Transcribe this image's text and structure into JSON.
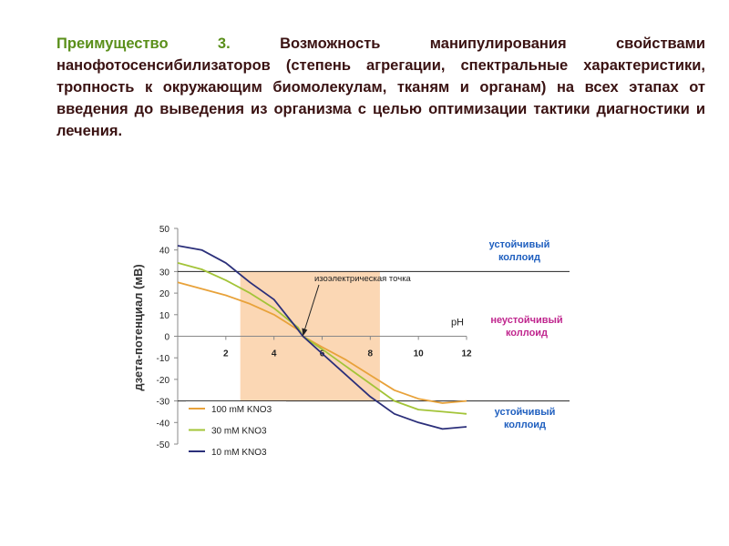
{
  "slide": {
    "heading_lead": "Преимущество 3.",
    "heading_body": "Возможность манипулирования свойствами нанофотосенсибилизаторов (степень агрегации, спектральные характеристики, тропность к окружающим биомолекулам, тканям и органам) на всех этапах от введения до выведения из организма с целью оптимизации тактики диагностики и лечения.",
    "colors": {
      "lead": "#5a8f1a",
      "body": "#3a1212"
    }
  },
  "chart_data": {
    "type": "line",
    "ylabel": "дзета-потенциал (мВ)",
    "xlabel": "pH",
    "xlim": [
      0,
      12
    ],
    "ylim": [
      -50,
      50
    ],
    "x_ticks": [
      2,
      4,
      6,
      8,
      10,
      12
    ],
    "y_ticks": [
      50,
      40,
      30,
      20,
      10,
      0,
      -10,
      -20,
      -30,
      -40,
      -50
    ],
    "iep_region": {
      "x_from": 2.6,
      "x_to": 8.4,
      "color": "#fbd7b4"
    },
    "threshold_lines": [
      30,
      -30
    ],
    "annotation": {
      "text": "изоэлектрическая точка",
      "x": 5.2,
      "y": 0
    },
    "zone_labels": {
      "stable_top": "устойчивый коллоид",
      "unstable": "неустойчивый коллоид",
      "stable_bottom": "устойчивый коллоид"
    },
    "zone_colors": {
      "stable": "#1f5fbf",
      "unstable": "#c0268e"
    },
    "series": [
      {
        "name": "100 mM KNO3",
        "color": "#e8a23a",
        "x": [
          0,
          1,
          2,
          3,
          4,
          5,
          5.2,
          6,
          7,
          8,
          9,
          10,
          11,
          12
        ],
        "y": [
          25,
          22,
          19,
          15,
          10,
          3,
          0,
          -5,
          -11,
          -18,
          -25,
          -29,
          -31,
          -30
        ]
      },
      {
        "name": "30 mM KNO3",
        "color": "#a3c438",
        "x": [
          0,
          1,
          2,
          3,
          4,
          5,
          5.2,
          6,
          7,
          8,
          9,
          10,
          11,
          12
        ],
        "y": [
          34,
          31,
          26,
          20,
          13,
          4,
          0,
          -6,
          -14,
          -22,
          -30,
          -34,
          -35,
          -36
        ]
      },
      {
        "name": "10 mM KNO3",
        "color": "#2b2f7a",
        "x": [
          0,
          1,
          2,
          3,
          4,
          5,
          5.2,
          6,
          7,
          8,
          9,
          10,
          11,
          12
        ],
        "y": [
          42,
          40,
          34,
          25,
          17,
          3,
          0,
          -8,
          -18,
          -28,
          -36,
          -40,
          -43,
          -42
        ]
      }
    ]
  }
}
